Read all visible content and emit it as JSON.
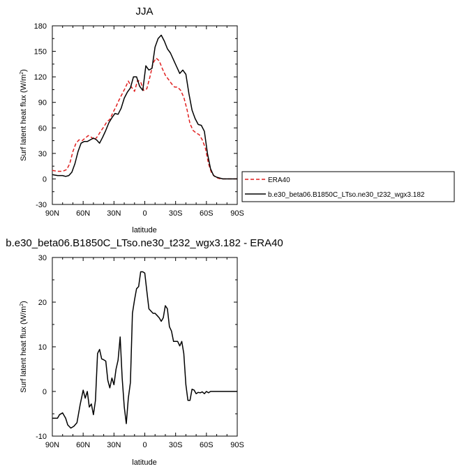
{
  "chart_data": [
    {
      "type": "line",
      "title": "JJA",
      "xlabel": "latitude",
      "ylabel": "Surf latent heat flux (W/m",
      "ylabel_sup": "2",
      "ylabel_close": ")",
      "xlim": [
        90,
        -90
      ],
      "ylim": [
        -30,
        180
      ],
      "xticks": [
        90,
        60,
        30,
        0,
        -30,
        -60,
        -90
      ],
      "xtick_labels": [
        "90N",
        "60N",
        "30N",
        "0",
        "30S",
        "60S",
        "90S"
      ],
      "yticks": [
        -30,
        0,
        30,
        60,
        90,
        120,
        150,
        180
      ],
      "ytick_labels": [
        "-30",
        "0",
        "30",
        "60",
        "90",
        "120",
        "150",
        "180"
      ],
      "legend_position": "lower-right, outside plot",
      "series": [
        {
          "name": "ERA40",
          "color": "#e01e1e",
          "dash": "dashed",
          "x": [
            90,
            85,
            80,
            76,
            73,
            70,
            67,
            64,
            61,
            58,
            55,
            52,
            49,
            46,
            43,
            40,
            37,
            34,
            31,
            28,
            25,
            22,
            19,
            16,
            13,
            10,
            7,
            4,
            1,
            -2,
            -5,
            -8,
            -11,
            -14,
            -17,
            -20,
            -23,
            -26,
            -29,
            -32,
            -35,
            -38,
            -41,
            -44,
            -47,
            -50,
            -53,
            -56,
            -59,
            -62,
            -65,
            -68,
            -71,
            -74,
            -77,
            -80,
            -85,
            -90
          ],
          "y": [
            10,
            9,
            9,
            11,
            18,
            32,
            42,
            46,
            45,
            48,
            51,
            49,
            46,
            50,
            56,
            61,
            67,
            70,
            78,
            85,
            93,
            100,
            107,
            115,
            108,
            103,
            116,
            114,
            104,
            106,
            120,
            136,
            142,
            139,
            130,
            122,
            117,
            112,
            108,
            108,
            104,
            96,
            82,
            65,
            57,
            54,
            52,
            46,
            36,
            18,
            7,
            3,
            1,
            0,
            0,
            0,
            0,
            0
          ]
        },
        {
          "name": "b.e30_beta06.B1850C_LTso.ne30_t232_wgx3.182",
          "color": "#000000",
          "dash": "solid",
          "x": [
            90,
            85,
            80,
            77,
            74,
            71,
            68,
            65,
            62,
            59,
            56,
            53,
            50,
            47,
            44,
            41,
            38,
            35,
            32,
            29,
            26,
            23,
            20,
            17,
            14,
            11,
            8,
            5,
            2,
            -1,
            -4,
            -7,
            -10,
            -13,
            -16,
            -19,
            -22,
            -25,
            -28,
            -31,
            -34,
            -37,
            -40,
            -43,
            -46,
            -49,
            -52,
            -55,
            -58,
            -61,
            -64,
            -67,
            -70,
            -73,
            -76,
            -79,
            -83,
            -87,
            -90
          ],
          "y": [
            5,
            4,
            4,
            3,
            4,
            8,
            18,
            32,
            42,
            44,
            44,
            46,
            48,
            46,
            42,
            49,
            57,
            66,
            72,
            77,
            76,
            83,
            95,
            102,
            107,
            120,
            120,
            109,
            104,
            133,
            128,
            130,
            155,
            165,
            169,
            162,
            153,
            148,
            140,
            132,
            124,
            128,
            123,
            100,
            81,
            71,
            64,
            63,
            56,
            30,
            12,
            4,
            2,
            1,
            0,
            0,
            0,
            0,
            0
          ]
        }
      ]
    },
    {
      "type": "line",
      "title": "b.e30_beta06.B1850C_LTso.ne30_t232_wgx3.182 - ERA40",
      "xlabel": "latitude",
      "ylabel": "Surf latent heat flux (W/m",
      "ylabel_sup": "2",
      "ylabel_close": ")",
      "xlim": [
        90,
        -90
      ],
      "ylim": [
        -10,
        30
      ],
      "xticks": [
        90,
        60,
        30,
        0,
        -30,
        -60,
        -90
      ],
      "xtick_labels": [
        "90N",
        "60N",
        "30N",
        "0",
        "30S",
        "60S",
        "90S"
      ],
      "yticks": [
        -10,
        0,
        10,
        20,
        30
      ],
      "ytick_labels": [
        "-10",
        "0",
        "10",
        "20",
        "30"
      ],
      "series": [
        {
          "color": "#000000",
          "dash": "solid",
          "x": [
            90,
            85,
            83,
            80,
            77,
            75,
            72,
            69,
            66,
            63,
            60,
            58,
            56,
            54,
            52,
            50,
            48,
            46,
            44,
            42,
            40,
            38,
            36,
            34,
            32,
            30,
            28,
            26,
            24,
            22,
            20,
            18,
            16,
            14,
            12,
            10,
            8,
            6,
            4,
            2,
            0,
            -2,
            -4,
            -6,
            -8,
            -10,
            -12,
            -14,
            -16,
            -18,
            -20,
            -22,
            -24,
            -26,
            -28,
            -30,
            -32,
            -34,
            -36,
            -38,
            -40,
            -42,
            -44,
            -46,
            -48,
            -50,
            -52,
            -54,
            -56,
            -58,
            -60,
            -62,
            -64,
            -66,
            -68,
            -70,
            -72,
            -74,
            -76,
            -78,
            -80,
            -82,
            -85,
            -87,
            -90
          ],
          "y": [
            -6,
            -6,
            -5.2,
            -4.8,
            -6,
            -7.5,
            -8.2,
            -7.8,
            -7,
            -3,
            0.3,
            -1.5,
            0,
            -3.5,
            -2.8,
            -5.2,
            -2,
            8.5,
            9.4,
            7.3,
            7.1,
            6.8,
            2.5,
            0.8,
            3,
            1.5,
            5,
            7,
            12.2,
            3,
            -3.5,
            -7.2,
            -1.5,
            2,
            17.5,
            20.5,
            23,
            23.5,
            26.8,
            26.8,
            26.5,
            22.5,
            18.5,
            18,
            17.5,
            17.5,
            17,
            16.5,
            15.7,
            16.5,
            19.2,
            18.5,
            14.5,
            13.5,
            11.2,
            11.2,
            11.2,
            10.2,
            11.2,
            8.5,
            1.5,
            -2,
            -2,
            0.5,
            0.3,
            -0.5,
            -0.2,
            -0.3,
            -0.1,
            -0.5,
            0,
            -0.3,
            0,
            0,
            0,
            0,
            0,
            0,
            0,
            0,
            0,
            0,
            0,
            0,
            0
          ]
        }
      ]
    }
  ]
}
